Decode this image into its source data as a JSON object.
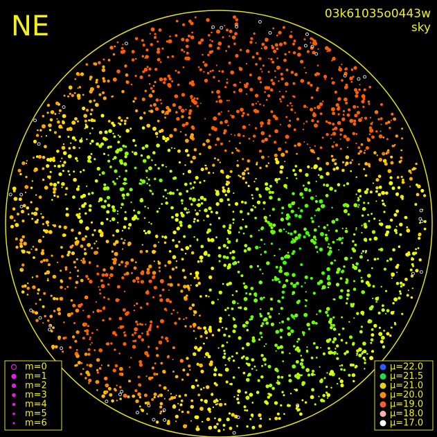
{
  "header": {
    "direction": "NE",
    "frame_id": "03k61035o0443w",
    "mode": "sky"
  },
  "mag_legend": [
    "m=0",
    "m=1",
    "m=2",
    "m=3",
    "m=4",
    "m=5",
    "m=6"
  ],
  "mu_legend": [
    {
      "label": "μ=22.0",
      "color": "#2a5cff"
    },
    {
      "label": "μ=21.5",
      "color": "#22dd44"
    },
    {
      "label": "μ=21.0",
      "color": "#e8d020"
    },
    {
      "label": "μ=20.0",
      "color": "#ff8c10"
    },
    {
      "label": "μ=19.0",
      "color": "#ff5a3a"
    },
    {
      "label": "μ=18.0",
      "color": "#ffb0b0"
    },
    {
      "label": "μ=17.0",
      "color": "#ffffff"
    }
  ]
}
